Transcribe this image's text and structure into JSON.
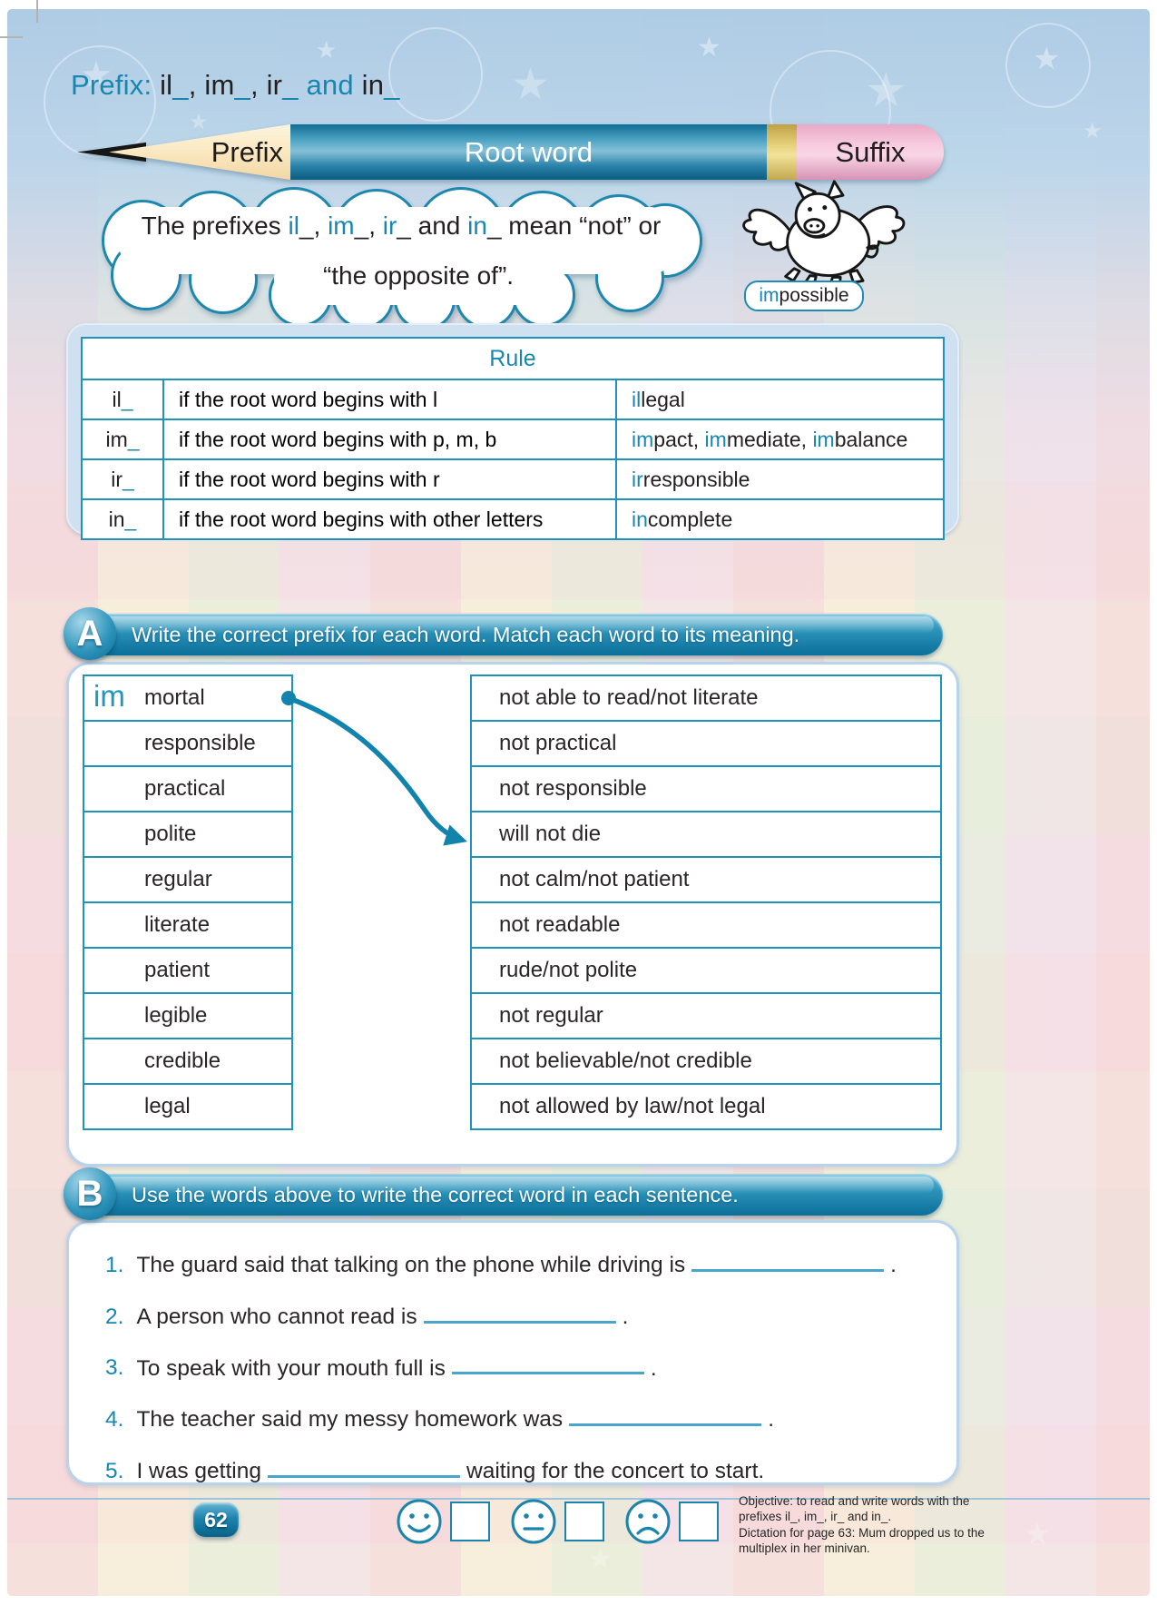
{
  "colors": {
    "accent": "#1887b0",
    "ink": "#231f20",
    "table_border": "#1e93bd",
    "pencil_blue": "#2a83a9",
    "eraser_pink": "#f7cade",
    "band_gold": "#e9d47f",
    "cloud_border": "#1e87ad"
  },
  "title_parts": [
    {
      "t": "Prefix: ",
      "c": "accent"
    },
    {
      "t": "il",
      "c": "ink"
    },
    {
      "t": "_",
      "c": "accent"
    },
    {
      "t": ", ",
      "c": "ink"
    },
    {
      "t": "im",
      "c": "ink"
    },
    {
      "t": "_",
      "c": "accent"
    },
    {
      "t": ", ",
      "c": "ink"
    },
    {
      "t": "ir",
      "c": "ink"
    },
    {
      "t": "_",
      "c": "accent"
    },
    {
      "t": " and ",
      "c": "accent"
    },
    {
      "t": "in",
      "c": "ink"
    },
    {
      "t": "_",
      "c": "accent"
    }
  ],
  "pencil": {
    "prefix_label": "Prefix",
    "root_label": "Root word",
    "suffix_label": "Suffix"
  },
  "cloud": {
    "line1_parts": [
      {
        "t": "The prefixes ",
        "c": "ink"
      },
      {
        "t": "il",
        "c": "accent"
      },
      {
        "t": "_",
        "c": "ink"
      },
      {
        "t": ", ",
        "c": "ink"
      },
      {
        "t": "im",
        "c": "accent"
      },
      {
        "t": "_",
        "c": "ink"
      },
      {
        "t": ", ",
        "c": "ink"
      },
      {
        "t": "ir",
        "c": "accent"
      },
      {
        "t": "_",
        "c": "ink"
      },
      {
        "t": " and ",
        "c": "ink"
      },
      {
        "t": "in",
        "c": "accent"
      },
      {
        "t": "_",
        "c": "ink"
      },
      {
        "t": " mean “not” or",
        "c": "ink"
      }
    ],
    "line2": "“the opposite of”."
  },
  "pig": {
    "caption_parts": [
      {
        "t": "im",
        "c": "accent"
      },
      {
        "t": "possible",
        "c": "ink"
      }
    ]
  },
  "rules": {
    "header": "Rule",
    "rows": [
      {
        "prefix": [
          {
            "t": "il",
            "c": "ink"
          },
          {
            "t": "_",
            "c": "accent"
          }
        ],
        "rule": "if the root word begins with l",
        "example": [
          {
            "t": "il",
            "c": "accent"
          },
          {
            "t": "legal",
            "c": "ink"
          }
        ]
      },
      {
        "prefix": [
          {
            "t": "im",
            "c": "ink"
          },
          {
            "t": "_",
            "c": "accent"
          }
        ],
        "rule": "if the root word begins with p, m, b",
        "example": [
          {
            "t": "im",
            "c": "accent"
          },
          {
            "t": "pact, ",
            "c": "ink"
          },
          {
            "t": "im",
            "c": "accent"
          },
          {
            "t": "mediate, ",
            "c": "ink"
          },
          {
            "t": "im",
            "c": "accent"
          },
          {
            "t": "balance",
            "c": "ink"
          }
        ]
      },
      {
        "prefix": [
          {
            "t": "ir",
            "c": "ink"
          },
          {
            "t": "_",
            "c": "accent"
          }
        ],
        "rule": "if the root word begins with r",
        "example": [
          {
            "t": "ir",
            "c": "accent"
          },
          {
            "t": "responsible",
            "c": "ink"
          }
        ]
      },
      {
        "prefix": [
          {
            "t": "in",
            "c": "ink"
          },
          {
            "t": "_",
            "c": "accent"
          }
        ],
        "rule": "if the root word begins with other letters",
        "example": [
          {
            "t": "in",
            "c": "accent"
          },
          {
            "t": "complete",
            "c": "ink"
          }
        ]
      }
    ]
  },
  "section_a": {
    "label": "A",
    "instruction": "Write the correct prefix for each word. Match each word to its meaning.",
    "words": [
      {
        "answer": "im",
        "word": "mortal"
      },
      {
        "word": "responsible"
      },
      {
        "word": "practical"
      },
      {
        "word": "polite"
      },
      {
        "word": "regular"
      },
      {
        "word": "literate"
      },
      {
        "word": "patient"
      },
      {
        "word": "legible"
      },
      {
        "word": "credible"
      },
      {
        "word": "legal"
      }
    ],
    "meanings": [
      "not able to read/not literate",
      "not practical",
      "not responsible",
      "will not die",
      "not calm/not patient",
      "not readable",
      "rude/not polite",
      "not regular",
      "not believable/not credible",
      "not allowed by law/not legal"
    ]
  },
  "section_b": {
    "label": "B",
    "instruction": "Use the words above to write the correct word in each sentence.",
    "sentences": [
      {
        "num": "1.",
        "pre": "The guard said that talking on the phone while driving is",
        "post": "."
      },
      {
        "num": "2.",
        "pre": "A person who cannot read is",
        "post": "."
      },
      {
        "num": "3.",
        "pre": "To speak with your mouth full is",
        "post": "."
      },
      {
        "num": "4.",
        "pre": "The teacher said my messy homework was",
        "post": "."
      },
      {
        "num": "5.",
        "pre": "I was getting",
        "post": "waiting for the concert to start."
      }
    ]
  },
  "footer": {
    "page_number": "62",
    "faces": [
      "happy",
      "neutral",
      "sad"
    ],
    "objective": "Objective: to read and write words with the prefixes il_, im_, ir_ and in_.",
    "dictation": "Dictation for page 63: Mum dropped us to the multiplex in her minivan."
  }
}
